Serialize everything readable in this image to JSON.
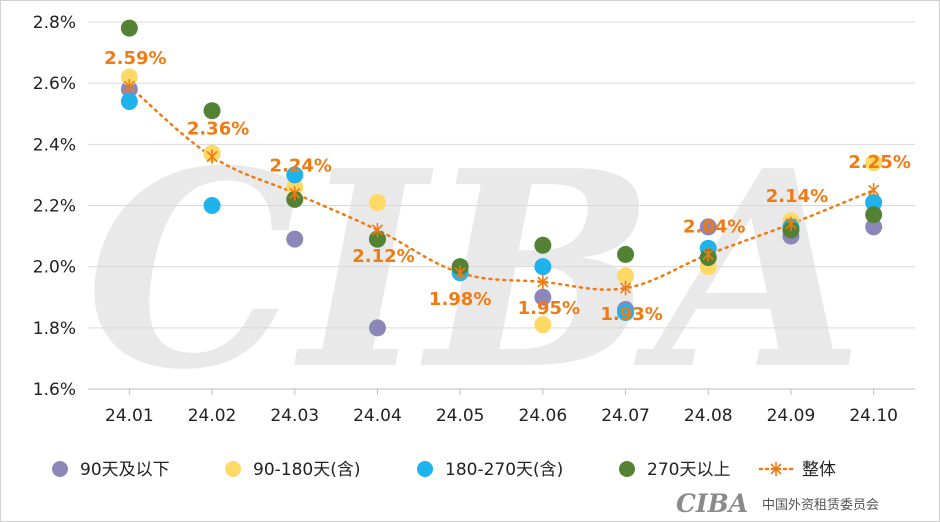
{
  "chart_data": {
    "type": "scatter",
    "x": [
      "24.01",
      "24.02",
      "24.03",
      "24.04",
      "24.05",
      "24.06",
      "24.07",
      "24.08",
      "24.09",
      "24.10"
    ],
    "y_ticks": [
      "1.6%",
      "1.8%",
      "2.0%",
      "2.2%",
      "2.4%",
      "2.6%",
      "2.8%"
    ],
    "ylim": [
      1.6,
      2.8
    ],
    "grid": "horizontal",
    "legend_position": "bottom",
    "series": [
      {
        "name": "90天及以下",
        "color": "#8c87b8",
        "marker": "circle",
        "values": [
          2.58,
          2.37,
          2.09,
          1.8,
          1.99,
          1.9,
          1.86,
          2.13,
          2.1,
          2.13
        ]
      },
      {
        "name": "90-180天(含)",
        "color": "#ffd966",
        "marker": "circle",
        "values": [
          2.62,
          2.37,
          2.26,
          2.21,
          1.99,
          1.81,
          1.97,
          2.0,
          2.15,
          2.34
        ]
      },
      {
        "name": "180-270天(含)",
        "color": "#1fb3ee",
        "marker": "circle",
        "values": [
          2.54,
          2.2,
          2.3,
          2.09,
          1.98,
          2.0,
          1.85,
          2.06,
          2.13,
          2.21
        ]
      },
      {
        "name": "270天以上",
        "color": "#548235",
        "marker": "circle",
        "values": [
          2.78,
          2.51,
          2.22,
          2.09,
          2.0,
          2.07,
          2.04,
          2.03,
          2.12,
          2.17
        ]
      },
      {
        "name": "整体",
        "color": "#f07b12",
        "marker": "asterisk",
        "line": "dotted",
        "values": [
          2.59,
          2.36,
          2.24,
          2.12,
          1.98,
          1.95,
          1.93,
          2.04,
          2.14,
          2.25
        ],
        "labels": [
          "2.59%",
          "2.36%",
          "2.24%",
          "2.12%",
          "1.98%",
          "1.95%",
          "1.93%",
          "2.04%",
          "2.14%",
          "2.25%"
        ]
      }
    ]
  },
  "watermark": {
    "logo": "CIBA",
    "org": "中国外资租赁委员会"
  }
}
